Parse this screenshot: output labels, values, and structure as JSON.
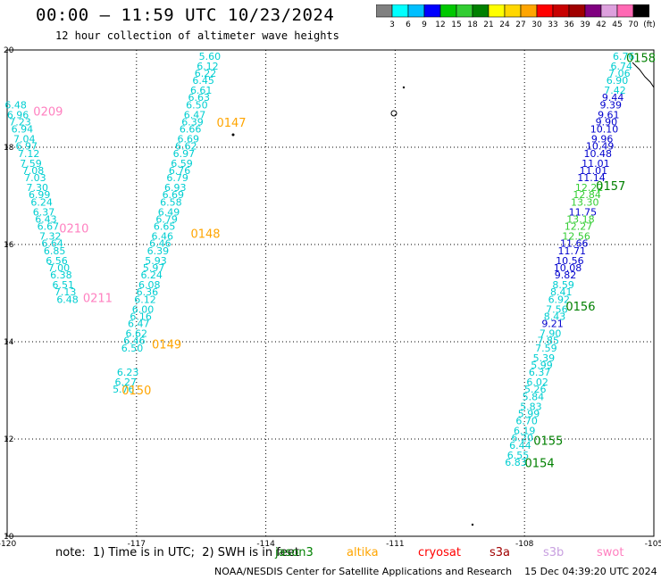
{
  "header": {
    "title": "00:00 – 11:59 UTC 10/23/2024",
    "subtitle": "12 hour collection of altimeter wave heights"
  },
  "legend": {
    "swatches": [
      "#808080",
      "#00ffff",
      "#00bfff",
      "#0000ff",
      "#00c800",
      "#32cd32",
      "#008000",
      "#ffff00",
      "#ffd700",
      "#ffa500",
      "#ff0000",
      "#c80000",
      "#a00000",
      "#800080",
      "#dda0dd",
      "#ff69b4",
      "#000000"
    ],
    "labels": [
      "3",
      "6",
      "9",
      "12",
      "15",
      "18",
      "21",
      "24",
      "27",
      "30",
      "33",
      "36",
      "39",
      "42",
      "45",
      "70",
      "(ft)"
    ]
  },
  "note": "note:  1) Time is in UTC;  2) SWH is in feet",
  "satellites": [
    {
      "name": "jason3",
      "color": "#008000"
    },
    {
      "name": "altika",
      "color": "#ffa500"
    },
    {
      "name": "cryosat",
      "color": "#ff0000"
    },
    {
      "name": "s3a",
      "color": "#a00000"
    },
    {
      "name": "s3b",
      "color": "#c8a0e0"
    },
    {
      "name": "swot",
      "color": "#ff80c0"
    }
  ],
  "credit": "NOAA/NESDIS Center for Satellite Applications and Research    15 Dec 04:39:20 UTC 2024",
  "chart_data": {
    "type": "scatter",
    "title": "00:00 – 11:59 UTC 10/23/2024",
    "subtitle": "12 hour collection of altimeter wave heights",
    "xlim": [
      -120,
      -105
    ],
    "ylim": [
      10,
      20
    ],
    "x_ticks": [
      "-120",
      "-117",
      "-114",
      "-111",
      "-108",
      "-105"
    ],
    "y_ticks": [
      "10",
      "12",
      "14",
      "16",
      "18",
      "20"
    ],
    "grid": true,
    "series": [
      {
        "name": "swot",
        "color": "#00ced1",
        "points": [
          [
            -119.8,
            18.8,
            "6.48"
          ],
          [
            -119.75,
            18.6,
            "6.96"
          ],
          [
            -119.7,
            18.45,
            "7.23"
          ],
          [
            -119.65,
            18.3,
            "6.94"
          ],
          [
            -119.6,
            18.1,
            "7.04"
          ],
          [
            -119.55,
            17.95,
            "6.97"
          ],
          [
            -119.5,
            17.8,
            "7.12"
          ],
          [
            -119.45,
            17.6,
            "7.59"
          ],
          [
            -119.4,
            17.45,
            "7.08"
          ],
          [
            -119.35,
            17.3,
            "7.03"
          ],
          [
            -119.3,
            17.1,
            "7.30"
          ],
          [
            -119.25,
            16.95,
            "6.99"
          ],
          [
            -119.2,
            16.8,
            "6.24"
          ],
          [
            -119.15,
            16.6,
            "6.37"
          ],
          [
            -119.1,
            16.45,
            "6.43"
          ],
          [
            -119.05,
            16.3,
            "6.67"
          ],
          [
            -119.0,
            16.1,
            "7.32"
          ],
          [
            -118.95,
            15.95,
            "6.64"
          ],
          [
            -118.9,
            15.8,
            "6.85"
          ],
          [
            -118.85,
            15.6,
            "6.56"
          ],
          [
            -118.8,
            15.45,
            "7.00"
          ],
          [
            -118.75,
            15.3,
            "6.38"
          ],
          [
            -118.7,
            15.1,
            "6.51"
          ],
          [
            -118.65,
            14.95,
            "7.13"
          ],
          [
            -118.6,
            14.8,
            "6.48"
          ]
        ]
      },
      {
        "name": "altika",
        "color": "#00ced1",
        "points": [
          [
            -115.3,
            19.8,
            "5.60"
          ],
          [
            -115.35,
            19.6,
            "6.12"
          ],
          [
            -115.4,
            19.45,
            "6.22"
          ],
          [
            -115.45,
            19.3,
            "6.45"
          ],
          [
            -115.5,
            19.1,
            "6.61"
          ],
          [
            -115.55,
            18.95,
            "6.63"
          ],
          [
            -115.6,
            18.8,
            "6.50"
          ],
          [
            -115.65,
            18.6,
            "6.47"
          ],
          [
            -115.7,
            18.45,
            "6.39"
          ],
          [
            -115.75,
            18.3,
            "6.66"
          ],
          [
            -115.8,
            18.1,
            "6.69"
          ],
          [
            -115.85,
            17.95,
            "6.62"
          ],
          [
            -115.9,
            17.8,
            "6.97"
          ],
          [
            -115.95,
            17.6,
            "6.59"
          ],
          [
            -116.0,
            17.45,
            "6.76"
          ],
          [
            -116.05,
            17.3,
            "6.79"
          ],
          [
            -116.1,
            17.1,
            "6.93"
          ],
          [
            -116.15,
            16.95,
            "6.69"
          ],
          [
            -116.2,
            16.8,
            "6.58"
          ],
          [
            -116.25,
            16.6,
            "6.49"
          ],
          [
            -116.3,
            16.45,
            "6.79"
          ],
          [
            -116.35,
            16.3,
            "6.65"
          ],
          [
            -116.4,
            16.1,
            "6.46"
          ],
          [
            -116.45,
            15.95,
            "6.46"
          ],
          [
            -116.5,
            15.8,
            "6.39"
          ],
          [
            -116.55,
            15.6,
            "5.93"
          ],
          [
            -116.6,
            15.45,
            "5.97"
          ],
          [
            -116.65,
            15.3,
            "6.24"
          ],
          [
            -116.7,
            15.1,
            "6.08"
          ],
          [
            -116.75,
            14.95,
            "6.36"
          ],
          [
            -116.8,
            14.8,
            "6.12"
          ],
          [
            -116.85,
            14.6,
            "6.00"
          ],
          [
            -116.9,
            14.45,
            "6.16"
          ],
          [
            -116.95,
            14.3,
            "6.47"
          ],
          [
            -117.0,
            14.1,
            "6.62"
          ],
          [
            -117.05,
            13.95,
            "6.46"
          ],
          [
            -117.1,
            13.8,
            "6.50"
          ],
          [
            -117.2,
            13.3,
            "6.23"
          ],
          [
            -117.25,
            13.1,
            "6.27"
          ],
          [
            -117.3,
            12.95,
            "5.76"
          ]
        ]
      },
      {
        "name": "jason3",
        "color": "#0000cd",
        "points": [
          [
            -105.7,
            19.8,
            "6.76"
          ],
          [
            -105.75,
            19.6,
            "6.74"
          ],
          [
            -105.8,
            19.45,
            "7.06"
          ],
          [
            -105.85,
            19.3,
            "6.90"
          ],
          [
            -105.9,
            19.1,
            "7.42"
          ],
          [
            -105.95,
            18.95,
            "9.44"
          ],
          [
            -106.0,
            18.8,
            "9.39"
          ],
          [
            -106.05,
            18.6,
            "9.61"
          ],
          [
            -106.1,
            18.45,
            "9.90"
          ],
          [
            -106.15,
            18.3,
            "10.10"
          ],
          [
            -106.2,
            18.1,
            "9.96"
          ],
          [
            -106.25,
            17.95,
            "10.49"
          ],
          [
            -106.3,
            17.8,
            "10.48"
          ],
          [
            -106.35,
            17.6,
            "11.01"
          ],
          [
            -106.4,
            17.45,
            "11.01"
          ],
          [
            -106.45,
            17.3,
            "11.14"
          ],
          [
            -106.5,
            17.1,
            "12.22"
          ],
          [
            -106.55,
            16.95,
            "12.84"
          ],
          [
            -106.6,
            16.8,
            "13.30"
          ],
          [
            -106.65,
            16.6,
            "11.75"
          ],
          [
            -106.7,
            16.45,
            "13.18"
          ],
          [
            -106.75,
            16.3,
            "12.27"
          ],
          [
            -106.8,
            16.1,
            "12.56"
          ],
          [
            -106.85,
            15.95,
            "11.66"
          ],
          [
            -106.9,
            15.8,
            "11.71"
          ],
          [
            -106.95,
            15.6,
            "10.56"
          ],
          [
            -107.0,
            15.45,
            "10.08"
          ],
          [
            -107.05,
            15.3,
            "9.82"
          ],
          [
            -107.1,
            15.1,
            "8.59"
          ],
          [
            -107.15,
            14.95,
            "8.41"
          ],
          [
            -107.2,
            14.8,
            "6.92"
          ],
          [
            -107.25,
            14.6,
            "7.56"
          ],
          [
            -107.3,
            14.45,
            "8.43"
          ],
          [
            -107.35,
            14.3,
            "9.21"
          ],
          [
            -107.4,
            14.1,
            "7.90"
          ],
          [
            -107.45,
            13.95,
            "7.85"
          ],
          [
            -107.5,
            13.8,
            "7.59"
          ],
          [
            -107.55,
            13.6,
            "5.39"
          ],
          [
            -107.6,
            13.45,
            "5.99"
          ],
          [
            -107.65,
            13.3,
            "6.37"
          ],
          [
            -107.7,
            13.1,
            "6.02"
          ],
          [
            -107.75,
            12.95,
            "5.26"
          ],
          [
            -107.8,
            12.8,
            "5.84"
          ],
          [
            -107.85,
            12.6,
            "5.83"
          ],
          [
            -107.9,
            12.45,
            "5.99"
          ],
          [
            -107.95,
            12.3,
            "6.70"
          ],
          [
            -108.0,
            12.1,
            "6.19"
          ],
          [
            -108.05,
            11.95,
            "6.20"
          ],
          [
            -108.1,
            11.8,
            "6.44"
          ],
          [
            -108.15,
            11.6,
            "6.55"
          ],
          [
            -108.2,
            11.45,
            "6.83"
          ]
        ]
      }
    ],
    "pass_labels": [
      {
        "text": "0209",
        "color": "#ff80c0"
      },
      {
        "text": "0210",
        "color": "#ff80c0"
      },
      {
        "text": "0211",
        "color": "#ff80c0"
      },
      {
        "text": "0147",
        "color": "#ffa500"
      },
      {
        "text": "0148",
        "color": "#ffa500"
      },
      {
        "text": "0149",
        "color": "#ffa500"
      },
      {
        "text": "0150",
        "color": "#ffa500"
      },
      {
        "text": "0158",
        "color": "#008000"
      },
      {
        "text": "0157",
        "color": "#008000"
      },
      {
        "text": "0156",
        "color": "#008000"
      },
      {
        "text": "0155",
        "color": "#008000"
      },
      {
        "text": "0154",
        "color": "#008000"
      }
    ]
  }
}
